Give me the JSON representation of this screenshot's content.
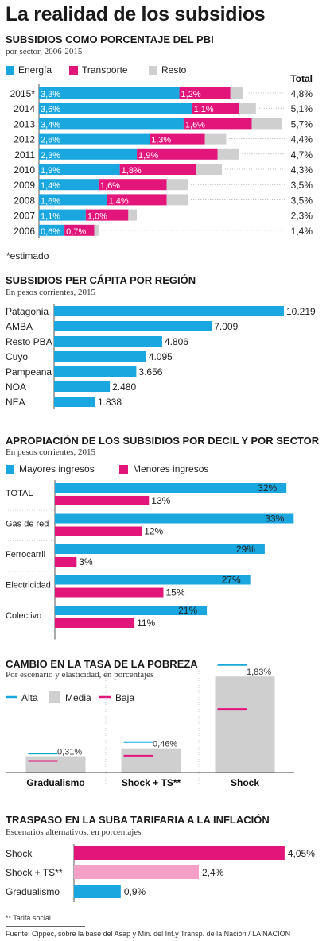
{
  "title": "La realidad de los subsidios",
  "colors": {
    "cyan": "#1aa6df",
    "magenta": "#e2157b",
    "gray": "#cfcfcf",
    "pink": "#f5a0c6"
  },
  "sections": {
    "sec1": {
      "title": "SUBSIDIOS COMO PORCENTAJE DEL PBI",
      "subtitle": "por sector, 2006-2015"
    },
    "sec2": {
      "title": "SUBSIDIOS PER CÁPITA POR REGIÓN",
      "subtitle": "En pesos corrientes, 2015"
    },
    "sec3": {
      "title": "APROPIACIÓN DE LOS SUBSIDIOS POR DECIL Y POR SECTOR",
      "subtitle": "En pesos corrientes, 2015"
    },
    "sec4": {
      "title": "CAMBIO EN LA TASA DE LA POBREZA",
      "subtitle": "Por escenario y elasticidad, en porcentajes"
    },
    "sec5": {
      "title": "TRASPASO EN LA SUBA TARIFARIA A LA INFLACIÓN",
      "subtitle": "Escenarios alternativos, en porcentajes"
    }
  },
  "footnote": "** Tarifa social",
  "source": "Fuente:  Cippec, sobre la base del Asap y Min. del Int.y Transp. de la Nación / LA NACION",
  "chart_data": [
    {
      "type": "bar",
      "stacked": true,
      "orientation": "horizontal",
      "legend": [
        "Energía",
        "Transporte",
        "Resto"
      ],
      "total_label": "Total",
      "categories": [
        "2015*",
        "2014",
        "2013",
        "2012",
        "2011",
        "2010",
        "2009",
        "2008",
        "2007",
        "2006"
      ],
      "series": [
        {
          "name": "Energía",
          "values": [
            3.3,
            3.6,
            3.4,
            2.6,
            2.3,
            1.9,
            1.4,
            1.6,
            1.1,
            0.6
          ],
          "labels": [
            "3,3%",
            "3,6%",
            "3,4%",
            "2,6%",
            "2,3%",
            "1,9%",
            "1,4%",
            "1,6%",
            "1,1%",
            "0,6%"
          ]
        },
        {
          "name": "Transporte",
          "values": [
            1.2,
            1.1,
            1.6,
            1.3,
            1.9,
            1.8,
            1.6,
            1.4,
            1.0,
            0.7
          ],
          "labels": [
            "1,2%",
            "1,1%",
            "1,6%",
            "1,3%",
            "1,9%",
            "1,8%",
            "1,6%",
            "1,4%",
            "1,0%",
            "0,7%"
          ]
        },
        {
          "name": "Resto",
          "values": [
            0.3,
            0.4,
            0.7,
            0.5,
            0.5,
            0.6,
            0.5,
            0.5,
            0.2,
            0.1
          ]
        }
      ],
      "totals": [
        "4,8%",
        "5,1%",
        "5,7%",
        "4,4%",
        "4,7%",
        "4,3%",
        "3,5%",
        "3,5%",
        "2,3%",
        "1,4%"
      ],
      "total_values": [
        4.8,
        5.1,
        5.7,
        4.4,
        4.7,
        4.3,
        3.5,
        3.5,
        2.3,
        1.4
      ],
      "note": "*estimado"
    },
    {
      "type": "bar",
      "orientation": "horizontal",
      "categories": [
        "Patagonia",
        "AMBA",
        "Resto PBA",
        "Cuyo",
        "Pampeana",
        "NOA",
        "NEA"
      ],
      "values": [
        10219,
        7009,
        4806,
        4095,
        3656,
        2480,
        1838
      ],
      "labels": [
        "10.219",
        "7.009",
        "4.806",
        "4.095",
        "3.656",
        "2.480",
        "1.838"
      ]
    },
    {
      "type": "bar",
      "orientation": "horizontal",
      "categories": [
        "TOTAL",
        "Gas de red",
        "Ferrocarril",
        "Electricidad",
        "Colectivo"
      ],
      "series": [
        {
          "name": "Mayores ingresos",
          "values": [
            32,
            33,
            29,
            27,
            21
          ],
          "labels": [
            "32%",
            "33%",
            "29%",
            "27%",
            "21%"
          ]
        },
        {
          "name": "Menores ingresos",
          "values": [
            13,
            12,
            3,
            15,
            11
          ],
          "labels": [
            "13%",
            "12%",
            "3%",
            "15%",
            "11%"
          ]
        }
      ]
    },
    {
      "type": "bar",
      "legend": [
        "Alta",
        "Media",
        "Baja"
      ],
      "categories": [
        "Gradualismo",
        "Shock + TS**",
        "Shock"
      ],
      "media_values": [
        0.31,
        0.46,
        1.83
      ],
      "media_labels": [
        "0,31%",
        "0,46%",
        "1,83%"
      ],
      "alta_values": [
        0.36,
        0.58,
        2.05
      ],
      "baja_values": [
        0.22,
        0.32,
        1.21
      ]
    },
    {
      "type": "bar",
      "orientation": "horizontal",
      "categories": [
        "Shock",
        "Shock + TS**",
        "Gradualismo"
      ],
      "values": [
        4.05,
        2.4,
        0.9
      ],
      "labels": [
        "4,05%",
        "2,4%",
        "0,9%"
      ]
    }
  ]
}
